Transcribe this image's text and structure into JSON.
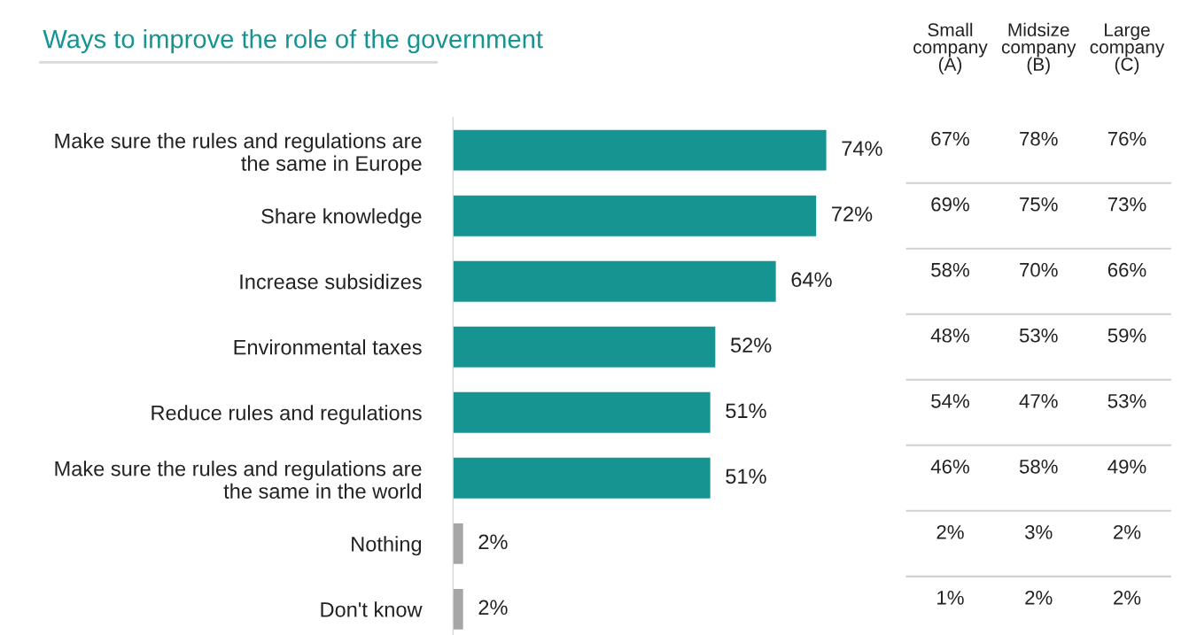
{
  "chart_data": [
    {
      "type": "bar",
      "orientation": "horizontal",
      "title": "Ways to improve the role of the government",
      "categories": [
        "Make sure the rules and regulations are\nthe same in Europe",
        "Share knowledge",
        "Increase subsidizes",
        "Environmental taxes",
        "Reduce rules and regulations",
        "Make sure the rules and regulations are\nthe same in the world",
        "Nothing",
        "Don't know"
      ],
      "values": [
        74,
        72,
        64,
        52,
        51,
        51,
        2,
        2
      ],
      "colors": [
        "#169491",
        "#169491",
        "#169491",
        "#169491",
        "#169491",
        "#169491",
        "#a6a6a6",
        "#a6a6a6"
      ],
      "value_labels": [
        "74%",
        "72%",
        "64%",
        "52%",
        "51%",
        "51%",
        "2%",
        "2%"
      ]
    },
    {
      "type": "heatmap",
      "categories": [
        "Small\ncompany\n(A)",
        "Midsize\ncompany\n(B)",
        "Large\ncompany\n(C)"
      ],
      "y_categories": [
        null,
        null,
        null,
        null,
        null,
        null,
        null,
        null
      ],
      "cells": [
        [
          67,
          78,
          76
        ],
        [
          69,
          75,
          73
        ],
        [
          58,
          70,
          66
        ],
        [
          48,
          53,
          59
        ],
        [
          54,
          47,
          53
        ],
        [
          46,
          58,
          49
        ],
        [
          2,
          3,
          2
        ],
        [
          1,
          2,
          2
        ]
      ],
      "cell_labels": [
        [
          "67%",
          "78%",
          "76%"
        ],
        [
          "69%",
          "75%",
          "73%"
        ],
        [
          "58%",
          "70%",
          "66%"
        ],
        [
          "48%",
          "53%",
          "59%"
        ],
        [
          "54%",
          "47%",
          "53%"
        ],
        [
          "46%",
          "58%",
          "49%"
        ],
        [
          "2%",
          "3%",
          "2%"
        ],
        [
          "1%",
          "2%",
          "2%"
        ]
      ]
    }
  ]
}
